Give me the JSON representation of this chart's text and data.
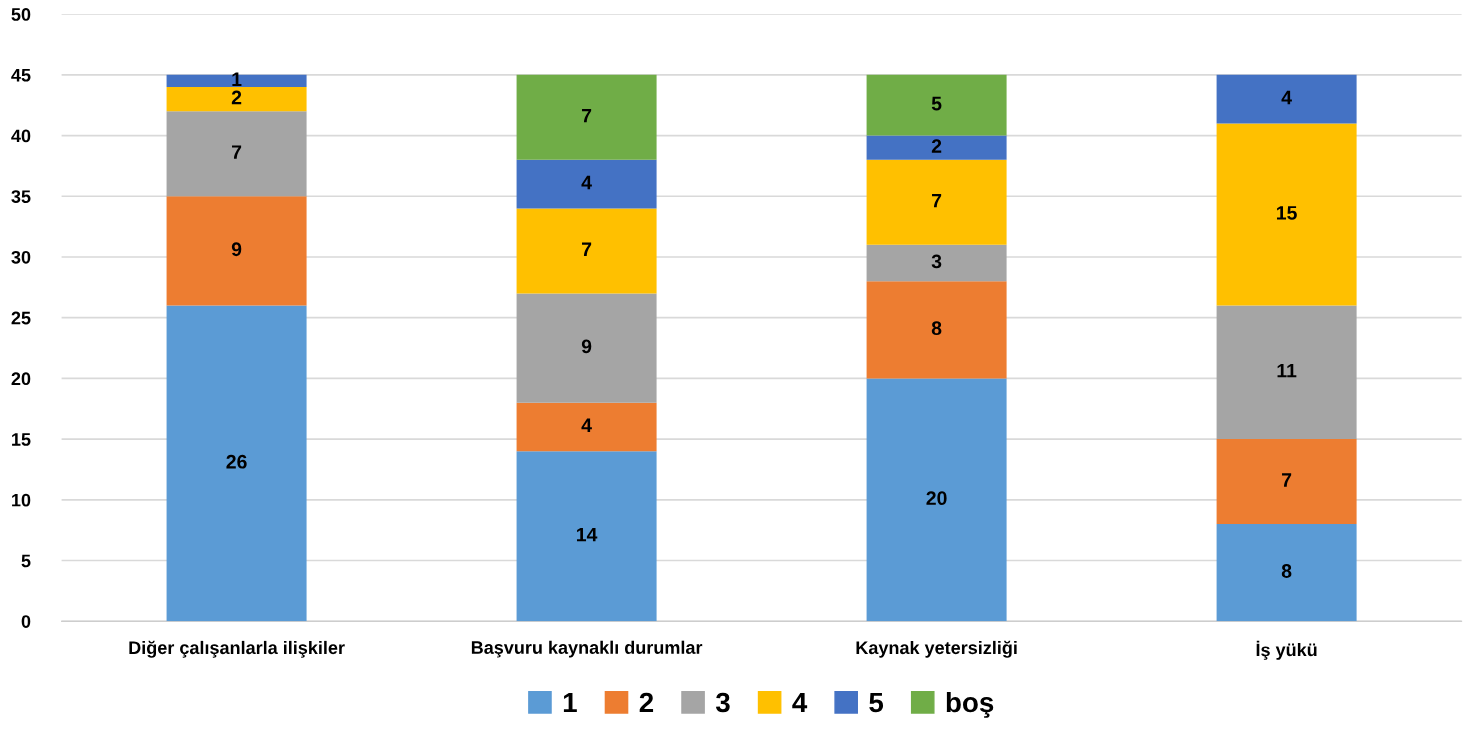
{
  "chart_data": {
    "type": "bar",
    "stacked": true,
    "data_labels": true,
    "grid": "y",
    "legend": "bottom",
    "categories": [
      "Diğer çalışanlarla ilişkiler",
      "Başvuru kaynaklı durumlar",
      "Kaynak yetersizliği",
      "İş yükü"
    ],
    "ylim": [
      0,
      50
    ],
    "yticks": [
      0,
      5,
      10,
      15,
      20,
      25,
      30,
      35,
      40,
      45,
      50
    ],
    "series": [
      {
        "name": "1",
        "color": "#5b9bd5",
        "values": [
          26,
          14,
          20,
          8
        ]
      },
      {
        "name": "2",
        "color": "#ed7d31",
        "values": [
          9,
          4,
          8,
          7
        ]
      },
      {
        "name": "3",
        "color": "#a5a5a5",
        "values": [
          7,
          9,
          3,
          11
        ]
      },
      {
        "name": "4",
        "color": "#ffc000",
        "values": [
          2,
          7,
          7,
          15
        ]
      },
      {
        "name": "5",
        "color": "#4472c4",
        "values": [
          1,
          4,
          2,
          4
        ]
      },
      {
        "name": "boş",
        "color": "#70ad47",
        "values": [
          null,
          7,
          5,
          null
        ]
      }
    ]
  }
}
